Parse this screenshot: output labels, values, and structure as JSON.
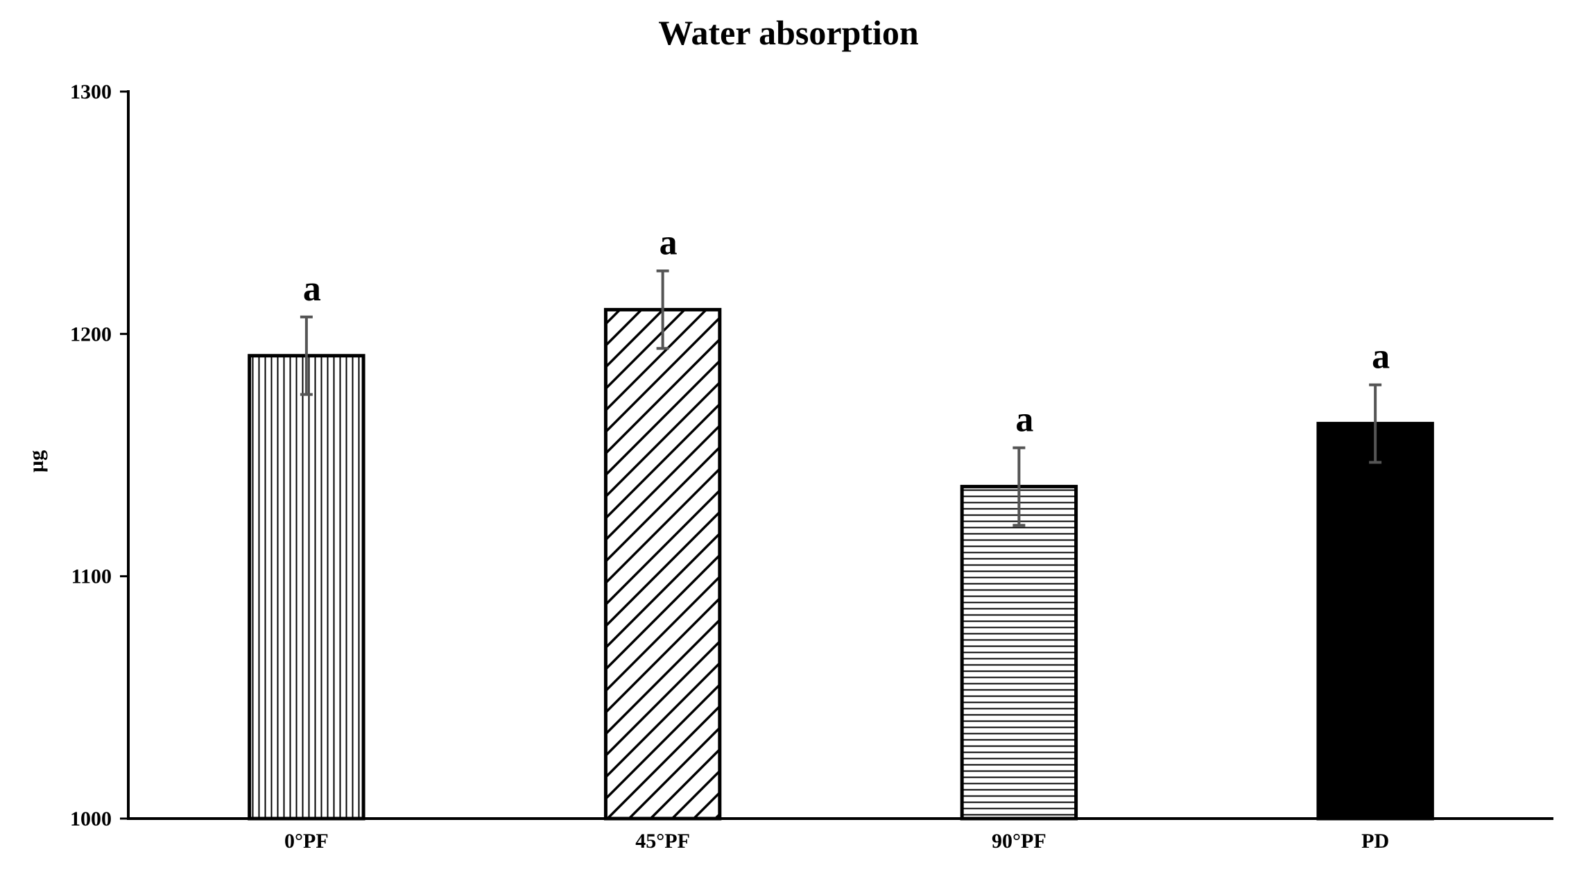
{
  "chart_data": {
    "type": "bar",
    "title": "Water absorption",
    "xlabel": "",
    "ylabel": "µg",
    "ylim": [
      1000,
      1300
    ],
    "yticks": [
      1000,
      1100,
      1200,
      1300
    ],
    "grid": false,
    "legend": "none",
    "categories": [
      "0°PF",
      "45°PF",
      "90°PF",
      "PD"
    ],
    "values": [
      1191,
      1210,
      1137,
      1163
    ],
    "errors": [
      16,
      16,
      16,
      16
    ],
    "significance_labels": [
      "a",
      "a",
      "a",
      "a"
    ],
    "patterns": [
      "vertical-lines",
      "diagonal-lines",
      "horizontal-lines",
      "solid"
    ],
    "colors": {
      "bar_stroke": "#000000",
      "bar_fill": "#000000",
      "error_bar": "#555555",
      "axis": "#000000"
    }
  }
}
